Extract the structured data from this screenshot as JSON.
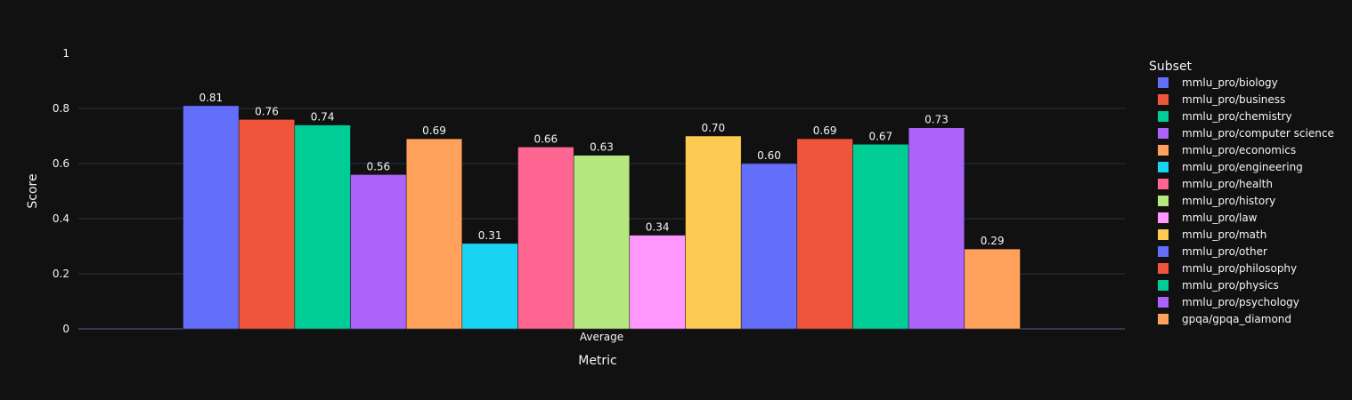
{
  "chart_data": {
    "type": "bar",
    "title": "",
    "xlabel": "Metric",
    "ylabel": "Score",
    "categories": [
      "Average"
    ],
    "ylim": [
      0,
      1
    ],
    "yticks": [
      "0",
      "0.2",
      "0.4",
      "0.6",
      "0.8",
      "1"
    ],
    "ytick_values": [
      0,
      0.2,
      0.4,
      0.6,
      0.8,
      1
    ],
    "grid": true,
    "legend_title": "Subset",
    "legend_position": "right",
    "series": [
      {
        "name": "mmlu_pro/biology",
        "values": [
          0.81
        ],
        "label": "0.81",
        "color": "#636efa"
      },
      {
        "name": "mmlu_pro/business",
        "values": [
          0.76
        ],
        "label": "0.76",
        "color": "#EF553B"
      },
      {
        "name": "mmlu_pro/chemistry",
        "values": [
          0.74
        ],
        "label": "0.74",
        "color": "#00cc96"
      },
      {
        "name": "mmlu_pro/computer science",
        "values": [
          0.56
        ],
        "label": "0.56",
        "color": "#ab63fa"
      },
      {
        "name": "mmlu_pro/economics",
        "values": [
          0.69
        ],
        "label": "0.69",
        "color": "#FFA15A"
      },
      {
        "name": "mmlu_pro/engineering",
        "values": [
          0.31
        ],
        "label": "0.31",
        "color": "#19d3f3"
      },
      {
        "name": "mmlu_pro/health",
        "values": [
          0.66
        ],
        "label": "0.66",
        "color": "#FF6692"
      },
      {
        "name": "mmlu_pro/history",
        "values": [
          0.63
        ],
        "label": "0.63",
        "color": "#B6E880"
      },
      {
        "name": "mmlu_pro/law",
        "values": [
          0.34
        ],
        "label": "0.34",
        "color": "#FF97FF"
      },
      {
        "name": "mmlu_pro/math",
        "values": [
          0.7
        ],
        "label": "0.70",
        "color": "#FECB52"
      },
      {
        "name": "mmlu_pro/other",
        "values": [
          0.6
        ],
        "label": "0.60",
        "color": "#636efa"
      },
      {
        "name": "mmlu_pro/philosophy",
        "values": [
          0.69
        ],
        "label": "0.69",
        "color": "#EF553B"
      },
      {
        "name": "mmlu_pro/physics",
        "values": [
          0.67
        ],
        "label": "0.67",
        "color": "#00cc96"
      },
      {
        "name": "mmlu_pro/psychology",
        "values": [
          0.73
        ],
        "label": "0.73",
        "color": "#ab63fa"
      },
      {
        "name": "gpqa/gpqa_diamond",
        "values": [
          0.29
        ],
        "label": "0.29",
        "color": "#FFA15A"
      }
    ]
  }
}
